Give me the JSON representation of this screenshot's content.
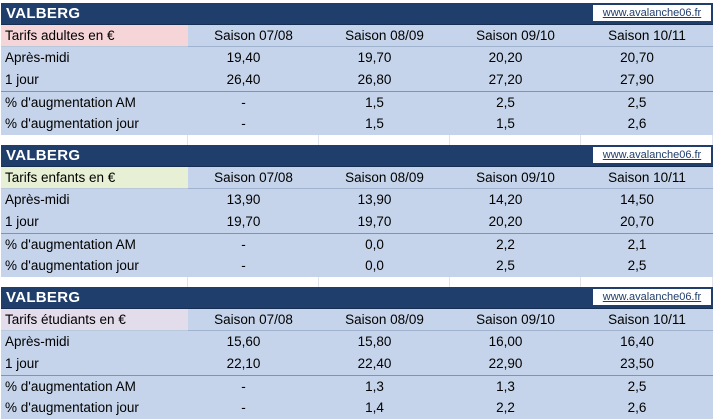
{
  "blocks": [
    {
      "title": "VALBERG",
      "site": "www.avalanche06.fr",
      "header_label": "Tarifs adultes en €",
      "header_color": "#f6d5d8",
      "seasons": [
        "Saison 07/08",
        "Saison 08/09",
        "Saison 09/10",
        "Saison 10/11"
      ],
      "rows": [
        {
          "label": "Après-midi",
          "values": [
            "19,40",
            "19,70",
            "20,20",
            "20,70"
          ]
        },
        {
          "label": "1 jour",
          "values": [
            "26,40",
            "26,80",
            "27,20",
            "27,90"
          ]
        },
        {
          "label": "% d'augmentation AM",
          "values": [
            "-",
            "1,5",
            "2,5",
            "2,5"
          ]
        },
        {
          "label": "% d'augmentation jour",
          "values": [
            "-",
            "1,5",
            "1,5",
            "2,6"
          ]
        }
      ]
    },
    {
      "title": "VALBERG",
      "site": "www.avalanche06.fr",
      "header_label": "Tarifs enfants en €",
      "header_color": "#e7f0d5",
      "seasons": [
        "Saison 07/08",
        "Saison 08/09",
        "Saison 09/10",
        "Saison 10/11"
      ],
      "rows": [
        {
          "label": "Après-midi",
          "values": [
            "13,90",
            "13,90",
            "14,20",
            "14,50"
          ]
        },
        {
          "label": "1 jour",
          "values": [
            "19,70",
            "19,70",
            "20,20",
            "20,70"
          ]
        },
        {
          "label": "% d'augmentation AM",
          "values": [
            "-",
            "0,0",
            "2,2",
            "2,1"
          ]
        },
        {
          "label": "% d'augmentation jour",
          "values": [
            "-",
            "0,0",
            "2,5",
            "2,5"
          ]
        }
      ]
    },
    {
      "title": "VALBERG",
      "site": "www.avalanche06.fr",
      "header_label": "Tarifs étudiants en €",
      "header_color": "#e3dcea",
      "seasons": [
        "Saison 07/08",
        "Saison 08/09",
        "Saison 09/10",
        "Saison 10/11"
      ],
      "rows": [
        {
          "label": "Après-midi",
          "values": [
            "15,60",
            "15,80",
            "16,00",
            "16,40"
          ]
        },
        {
          "label": "1 jour",
          "values": [
            "22,10",
            "22,40",
            "22,90",
            "23,50"
          ]
        },
        {
          "label": "% d'augmentation AM",
          "values": [
            "-",
            "1,3",
            "1,3",
            "2,5"
          ]
        },
        {
          "label": "% d'augmentation jour",
          "values": [
            "-",
            "1,4",
            "2,2",
            "2,6"
          ]
        }
      ]
    }
  ]
}
